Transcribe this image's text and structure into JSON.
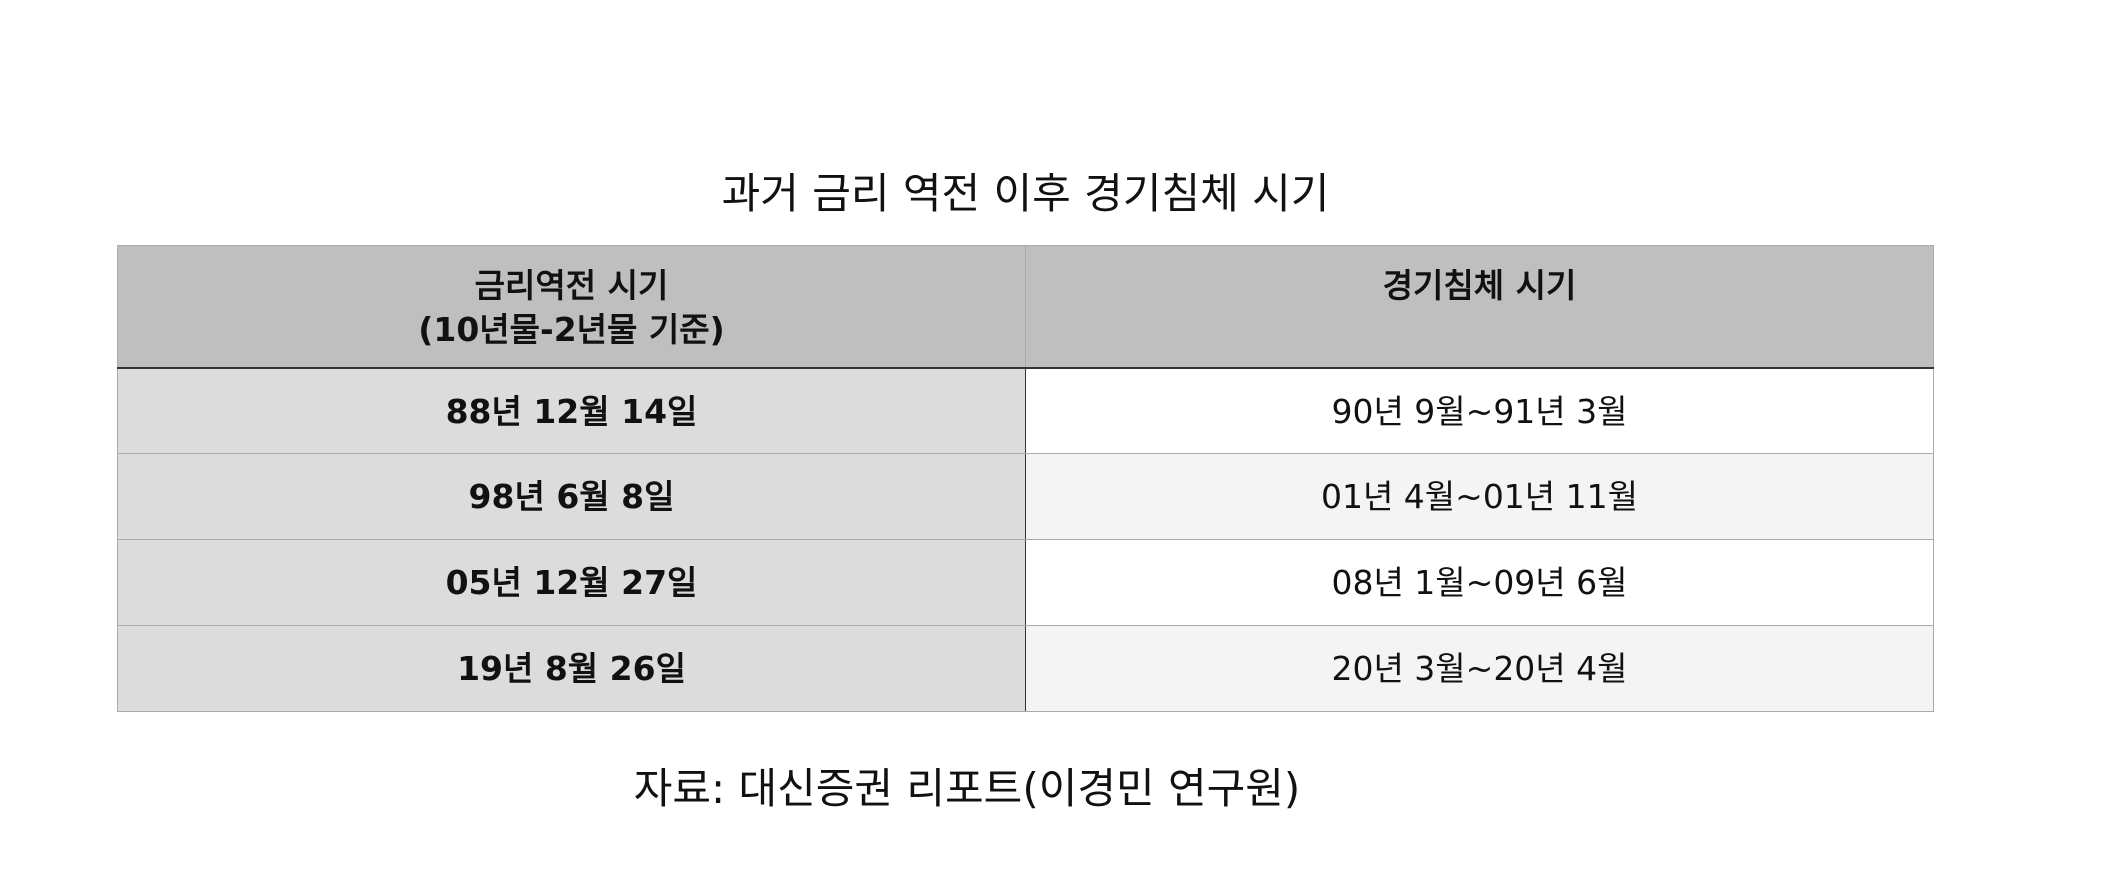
{
  "title": "과거 금리 역전 이후 경기침체 시기",
  "table": {
    "headers": [
      "금리역전 시기",
      "(10년물-2년물 기준)",
      "경기침체 시기"
    ],
    "rows": [
      {
        "inversion": "88년 12월 14일",
        "recession": "90년 9월~91년 3월"
      },
      {
        "inversion": "98년 6월 8일",
        "recession": "01년 4월~01년 11월"
      },
      {
        "inversion": "05년 12월 27일",
        "recession": "08년 1월~09년 6월"
      },
      {
        "inversion": "19년 8월 26일",
        "recession": "20년 3월~20년 4월"
      }
    ]
  },
  "source": "자료: 대신증권 리포트(이경민 연구원)"
}
